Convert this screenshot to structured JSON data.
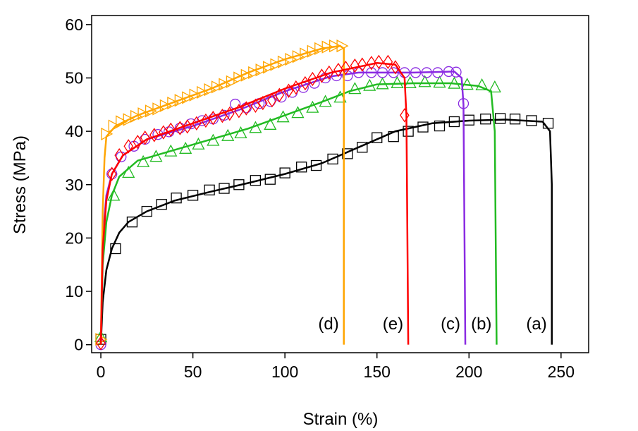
{
  "chart_data": {
    "type": "line",
    "x_label": "Strain (%)",
    "y_label": "Stress (MPa)",
    "xlim": [
      -5,
      265
    ],
    "ylim": [
      -1.5,
      61.7
    ],
    "xticks": [
      0,
      50,
      100,
      150,
      200,
      250
    ],
    "yticks": [
      0,
      10,
      20,
      30,
      40,
      50,
      60
    ],
    "series": [
      {
        "name": "(a)",
        "color": "#000000",
        "marker": "square",
        "x": [
          0,
          1,
          3,
          6,
          10,
          15,
          25,
          40,
          60,
          80,
          100,
          120,
          140,
          160,
          180,
          200,
          220,
          240,
          244,
          245,
          245
        ],
        "values": [
          0,
          8,
          14,
          18,
          21,
          23,
          25,
          27,
          28.7,
          30.3,
          32,
          34,
          37,
          40,
          41.5,
          42,
          42.2,
          41.8,
          40,
          30,
          0
        ],
        "marker_x": [
          0,
          8,
          17,
          25,
          33,
          41,
          50,
          59,
          67,
          75,
          84,
          92,
          100,
          109,
          117,
          126,
          134,
          142,
          150,
          159,
          167,
          175,
          184,
          192,
          200,
          209,
          217,
          225,
          234,
          243
        ],
        "marker_values": [
          1,
          18,
          23,
          25,
          26.3,
          27.5,
          28,
          29,
          29.3,
          30,
          30.8,
          31,
          32.2,
          33.3,
          33.6,
          34.8,
          35.8,
          37,
          38.8,
          39,
          40,
          40.8,
          41,
          41.8,
          42.1,
          42.3,
          42.4,
          42.3,
          42,
          41.5
        ]
      },
      {
        "name": "(b)",
        "color": "#22bb22",
        "marker": "triangle",
        "x": [
          0,
          1,
          3,
          6,
          10,
          20,
          40,
          60,
          80,
          100,
          120,
          135,
          150,
          170,
          190,
          205,
          212,
          214,
          215
        ],
        "values": [
          0,
          15,
          23,
          28,
          31.5,
          34.5,
          36.5,
          38.5,
          40.5,
          43,
          45.5,
          47.5,
          48.8,
          49,
          49,
          48.5,
          47.5,
          40,
          0
        ],
        "marker_x": [
          0,
          7,
          15,
          23,
          30,
          38,
          46,
          53,
          61,
          69,
          76,
          84,
          92,
          99,
          107,
          115,
          122,
          130,
          138,
          146,
          153,
          161,
          168,
          176,
          184,
          192,
          199,
          207,
          214
        ],
        "marker_values": [
          1.5,
          28,
          32.3,
          34.3,
          35.3,
          36.3,
          36.8,
          37.6,
          38.3,
          39.2,
          39.7,
          40.7,
          41.3,
          42.7,
          43.5,
          44.5,
          45.6,
          46.4,
          48,
          48.6,
          48.9,
          49.1,
          49.1,
          49.3,
          49.2,
          49,
          48.8,
          48.7,
          48.3
        ]
      },
      {
        "name": "(c)",
        "color": "#8a2be2",
        "marker": "circle",
        "x": [
          0,
          1,
          3,
          6,
          12,
          25,
          50,
          75,
          100,
          125,
          140,
          170,
          192,
          196,
          197,
          198
        ],
        "values": [
          0,
          20,
          28,
          32,
          35.5,
          38.5,
          41,
          44,
          47.5,
          50.3,
          51,
          51,
          51.2,
          50,
          45,
          0
        ],
        "marker_x": [
          0,
          6,
          11,
          18,
          24,
          31,
          37,
          43,
          49,
          55,
          61,
          67,
          73,
          79,
          86,
          92,
          98,
          104,
          110,
          116,
          122,
          128,
          134,
          140,
          147,
          153,
          159,
          165,
          171,
          177,
          183,
          189,
          193,
          197
        ],
        "marker_values": [
          0,
          32,
          35.2,
          37.2,
          38.5,
          39.4,
          39.9,
          40.6,
          41.4,
          42,
          42.3,
          43,
          45.1,
          44.4,
          45.2,
          45.6,
          46.4,
          47.3,
          48.2,
          49,
          50,
          50.4,
          50.4,
          51,
          51,
          51,
          51,
          51,
          51,
          51,
          51,
          51.2,
          51.1,
          45.2
        ]
      },
      {
        "name": "(d)",
        "color": "#ffa500",
        "marker": "right-triangle",
        "x": [
          0,
          1,
          2,
          3,
          8,
          20,
          40,
          60,
          80,
          100,
          120,
          130,
          132,
          132
        ],
        "values": [
          0,
          25,
          35,
          39,
          41,
          43,
          45.5,
          48,
          51,
          53.5,
          55.5,
          56,
          55.5,
          0
        ],
        "marker_x": [
          0,
          3,
          7,
          11,
          15,
          19,
          23,
          27,
          31,
          35,
          39,
          43,
          47,
          51,
          55,
          59,
          63,
          67,
          71,
          75,
          79,
          83,
          87,
          91,
          95,
          99,
          103,
          107,
          111,
          115,
          119,
          123,
          127,
          131
        ],
        "marker_values": [
          1,
          39.5,
          41,
          41.8,
          42.2,
          42.8,
          43.3,
          43.8,
          44.2,
          44.8,
          45.3,
          45.8,
          46.3,
          46.8,
          47.3,
          47.8,
          48.3,
          48.8,
          49.3,
          50,
          50.5,
          51,
          51.5,
          52,
          52.5,
          53,
          53.5,
          54,
          54.5,
          55,
          55.5,
          55.8,
          56,
          56
        ]
      },
      {
        "name": "(e)",
        "color": "#ff0000",
        "marker": "diamond",
        "x": [
          0,
          1,
          3,
          6,
          12,
          25,
          50,
          75,
          100,
          125,
          150,
          160,
          165,
          166,
          167
        ],
        "values": [
          0,
          18,
          27,
          32,
          35.5,
          38.5,
          41.5,
          44.5,
          48,
          51,
          52.8,
          52.5,
          50,
          43,
          0
        ],
        "marker_x": [
          0,
          6,
          10,
          15,
          20,
          24,
          29,
          34,
          38,
          43,
          47,
          52,
          57,
          61,
          66,
          70,
          75,
          79,
          84,
          88,
          93,
          97,
          102,
          106,
          111,
          115,
          120,
          124,
          129,
          133,
          138,
          142,
          147,
          151,
          156,
          160,
          165
        ],
        "marker_values": [
          0.3,
          32,
          35.5,
          37.2,
          38,
          38.8,
          39.3,
          39.8,
          40.3,
          40.6,
          40.9,
          41.5,
          42,
          42.5,
          42.9,
          43.3,
          43.8,
          44.3,
          44.8,
          45.3,
          45.8,
          46.8,
          47.6,
          48.2,
          49,
          49.8,
          50.4,
          51,
          51.5,
          51.9,
          52.3,
          52.5,
          52.8,
          53,
          53,
          52,
          43
        ]
      }
    ]
  }
}
